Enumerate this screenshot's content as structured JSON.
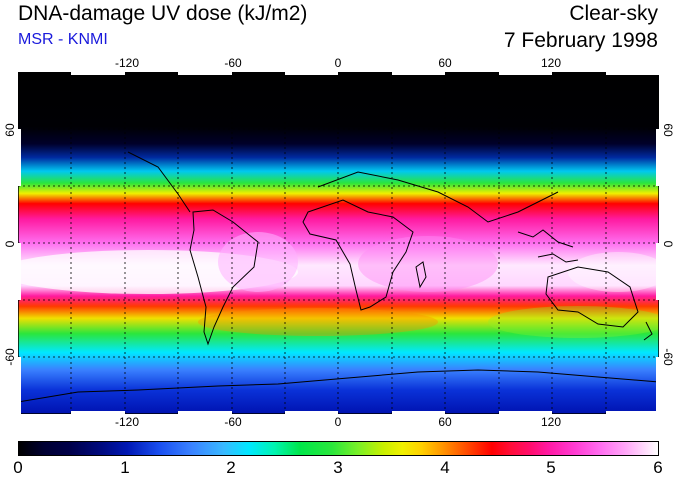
{
  "header": {
    "title": "DNA-damage UV dose (kJ/m2)",
    "subtitle": "MSR - KNMI",
    "condition": "Clear-sky",
    "date": "7 February 1998"
  },
  "map": {
    "longitude_ticks": [
      "-120",
      "-60",
      "0",
      "60",
      "120"
    ],
    "latitude_ticks": [
      "60",
      "0",
      "-60"
    ],
    "projection": "equirectangular",
    "longitude_range": [
      -180,
      180
    ],
    "latitude_range": [
      -90,
      90
    ],
    "gridlines": "dotted",
    "grid_longitudes": [
      -150,
      -120,
      -90,
      -60,
      -30,
      0,
      30,
      60,
      90,
      120,
      150
    ],
    "grid_latitudes": [
      60,
      30,
      0,
      -30,
      -60
    ]
  },
  "colorbar": {
    "ticks": [
      "0",
      "1",
      "2",
      "3",
      "4",
      "5",
      "6"
    ],
    "range": [
      0,
      6
    ],
    "colors": [
      "#000000",
      "#0018b4",
      "#00e8ff",
      "#2be63c",
      "#f0f000",
      "#ff0000",
      "#ff3cd2",
      "#ffffff"
    ]
  }
}
